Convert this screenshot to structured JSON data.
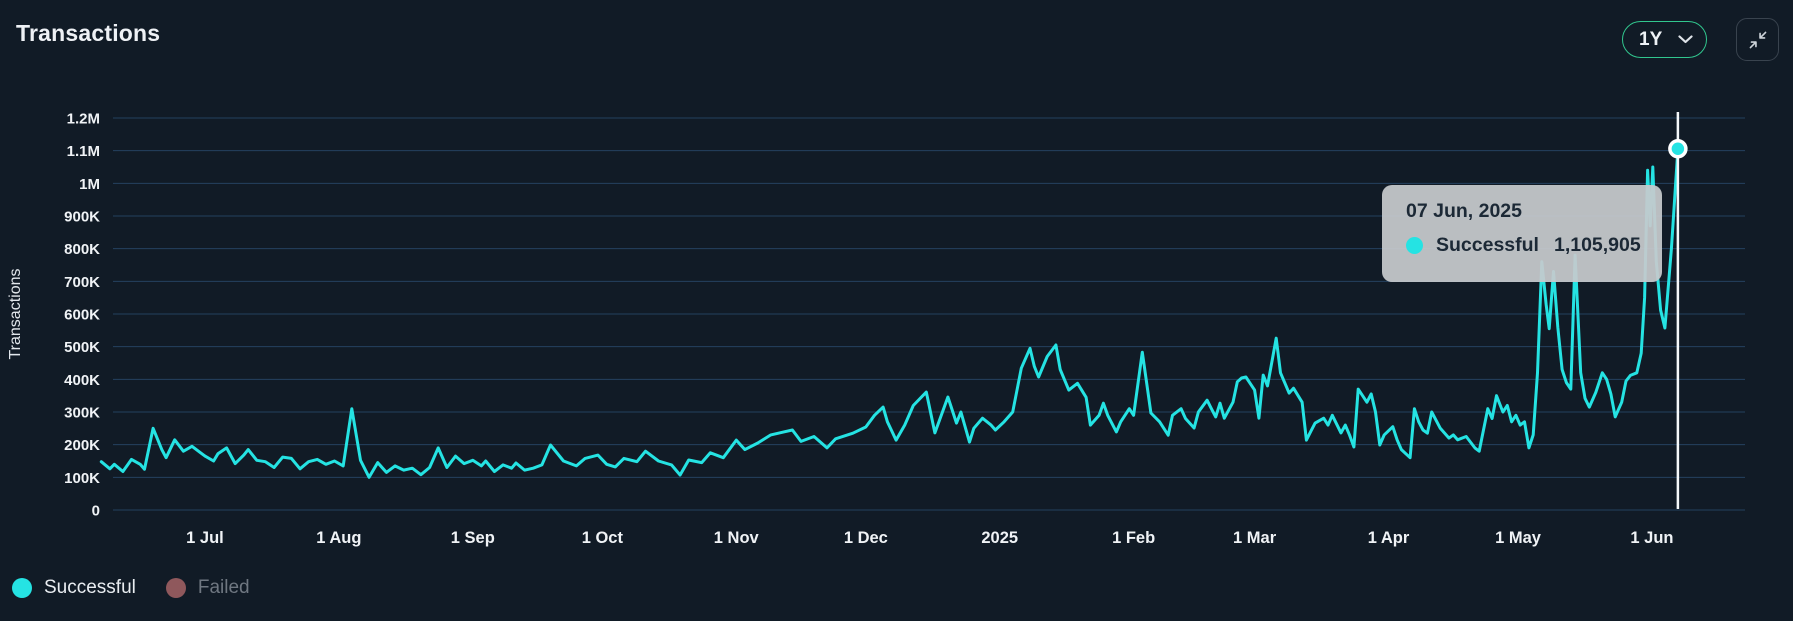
{
  "header": {
    "title": "Transactions",
    "range_selector": {
      "value": "1Y"
    }
  },
  "colors": {
    "background": "#111b26",
    "grid": "#24425f",
    "axis_text": "#f0f3f6",
    "successful": "#25e3e3",
    "failed": "#8f585c",
    "failed_text": "#6f7781",
    "legend_text": "#e9edf1",
    "pill_border": "#31c68e",
    "crosshair": "#f5f8fa",
    "tooltip_bg": "#c7cace"
  },
  "tooltip": {
    "date": "07 Jun, 2025",
    "series": "Successful",
    "value": "1,105,905"
  },
  "chart_data": {
    "type": "line",
    "title": "Transactions",
    "ylabel": "Transactions",
    "xlabel": "",
    "grid": true,
    "legend_position": "bottom-left",
    "ylim": [
      0,
      1200000
    ],
    "y_ticks": [
      {
        "v": 0,
        "label": "0"
      },
      {
        "v": 100000,
        "label": "100K"
      },
      {
        "v": 200000,
        "label": "200K"
      },
      {
        "v": 300000,
        "label": "300K"
      },
      {
        "v": 400000,
        "label": "400K"
      },
      {
        "v": 500000,
        "label": "500K"
      },
      {
        "v": 600000,
        "label": "600K"
      },
      {
        "v": 700000,
        "label": "700K"
      },
      {
        "v": 800000,
        "label": "800K"
      },
      {
        "v": 900000,
        "label": "900K"
      },
      {
        "v": 1000000,
        "label": "1M"
      },
      {
        "v": 1100000,
        "label": "1.1M"
      },
      {
        "v": 1200000,
        "label": "1.2M"
      }
    ],
    "x_ticks": [
      {
        "day": 24,
        "label": "1 Jul"
      },
      {
        "day": 55,
        "label": "1 Aug"
      },
      {
        "day": 86,
        "label": "1 Sep"
      },
      {
        "day": 116,
        "label": "1 Oct"
      },
      {
        "day": 147,
        "label": "1 Nov"
      },
      {
        "day": 177,
        "label": "1 Dec"
      },
      {
        "day": 208,
        "label": "2025"
      },
      {
        "day": 239,
        "label": "1 Feb"
      },
      {
        "day": 267,
        "label": "1 Mar"
      },
      {
        "day": 298,
        "label": "1 Apr"
      },
      {
        "day": 328,
        "label": "1 May"
      },
      {
        "day": 359,
        "label": "1 Jun"
      }
    ],
    "legend": [
      {
        "label": "Successful",
        "color": "#25e3e3",
        "active": true,
        "text_color": "#e9edf1"
      },
      {
        "label": "Failed",
        "color": "#8f585c",
        "active": false,
        "text_color": "#6f7781"
      }
    ],
    "highlight": {
      "day": 365,
      "value": 1105905,
      "date_label": "07 Jun, 2025",
      "series": "Successful"
    },
    "series": [
      {
        "name": "Successful",
        "color": "#25e3e3",
        "unit": "transactions per day",
        "points": [
          [
            0,
            148000
          ],
          [
            2,
            126000
          ],
          [
            3,
            140000
          ],
          [
            5,
            118000
          ],
          [
            7,
            155000
          ],
          [
            9,
            140000
          ],
          [
            10,
            125000
          ],
          [
            12,
            250000
          ],
          [
            14,
            185000
          ],
          [
            15,
            160000
          ],
          [
            17,
            215000
          ],
          [
            19,
            180000
          ],
          [
            21,
            195000
          ],
          [
            23,
            175000
          ],
          [
            24,
            165000
          ],
          [
            26,
            150000
          ],
          [
            27,
            172000
          ],
          [
            29,
            190000
          ],
          [
            31,
            142000
          ],
          [
            33,
            168000
          ],
          [
            34,
            185000
          ],
          [
            36,
            152000
          ],
          [
            38,
            148000
          ],
          [
            40,
            130000
          ],
          [
            42,
            162000
          ],
          [
            44,
            158000
          ],
          [
            46,
            126000
          ],
          [
            48,
            148000
          ],
          [
            50,
            155000
          ],
          [
            52,
            140000
          ],
          [
            54,
            150000
          ],
          [
            56,
            135000
          ],
          [
            58,
            310000
          ],
          [
            60,
            152000
          ],
          [
            62,
            100000
          ],
          [
            64,
            145000
          ],
          [
            66,
            115000
          ],
          [
            68,
            135000
          ],
          [
            70,
            122000
          ],
          [
            72,
            128000
          ],
          [
            74,
            108000
          ],
          [
            76,
            130000
          ],
          [
            78,
            190000
          ],
          [
            80,
            130000
          ],
          [
            82,
            165000
          ],
          [
            84,
            142000
          ],
          [
            86,
            152000
          ],
          [
            88,
            135000
          ],
          [
            89,
            150000
          ],
          [
            91,
            118000
          ],
          [
            93,
            138000
          ],
          [
            95,
            128000
          ],
          [
            96,
            144000
          ],
          [
            98,
            122000
          ],
          [
            100,
            128000
          ],
          [
            102,
            138000
          ],
          [
            104,
            199000
          ],
          [
            107,
            150000
          ],
          [
            110,
            135000
          ],
          [
            112,
            158000
          ],
          [
            115,
            168000
          ],
          [
            117,
            140000
          ],
          [
            119,
            132000
          ],
          [
            121,
            158000
          ],
          [
            124,
            148000
          ],
          [
            126,
            180000
          ],
          [
            129,
            150000
          ],
          [
            132,
            138000
          ],
          [
            134,
            107000
          ],
          [
            136,
            153000
          ],
          [
            139,
            145000
          ],
          [
            141,
            175000
          ],
          [
            144,
            160000
          ],
          [
            147,
            214000
          ],
          [
            149,
            185000
          ],
          [
            152,
            205000
          ],
          [
            155,
            230000
          ],
          [
            158,
            239000
          ],
          [
            160,
            245000
          ],
          [
            162,
            210000
          ],
          [
            165,
            225000
          ],
          [
            168,
            190000
          ],
          [
            170,
            218000
          ],
          [
            174,
            235000
          ],
          [
            177,
            254000
          ],
          [
            179,
            290000
          ],
          [
            181,
            315000
          ],
          [
            182,
            270000
          ],
          [
            184,
            214000
          ],
          [
            186,
            260000
          ],
          [
            188,
            320000
          ],
          [
            191,
            361000
          ],
          [
            193,
            236000
          ],
          [
            196,
            346000
          ],
          [
            198,
            266000
          ],
          [
            199,
            300000
          ],
          [
            201,
            208000
          ],
          [
            202,
            250000
          ],
          [
            204,
            281000
          ],
          [
            206,
            260000
          ],
          [
            207,
            245000
          ],
          [
            209,
            270000
          ],
          [
            211,
            300000
          ],
          [
            213,
            434000
          ],
          [
            215,
            495000
          ],
          [
            216,
            440000
          ],
          [
            217,
            407000
          ],
          [
            219,
            470000
          ],
          [
            221,
            505000
          ],
          [
            222,
            430000
          ],
          [
            224,
            367000
          ],
          [
            226,
            388000
          ],
          [
            228,
            345000
          ],
          [
            229,
            260000
          ],
          [
            231,
            290000
          ],
          [
            232,
            327000
          ],
          [
            233,
            290000
          ],
          [
            235,
            239000
          ],
          [
            236,
            270000
          ],
          [
            238,
            310000
          ],
          [
            239,
            290000
          ],
          [
            241,
            483000
          ],
          [
            243,
            297000
          ],
          [
            245,
            270000
          ],
          [
            247,
            229000
          ],
          [
            248,
            290000
          ],
          [
            250,
            310000
          ],
          [
            251,
            280000
          ],
          [
            253,
            251000
          ],
          [
            254,
            300000
          ],
          [
            256,
            336000
          ],
          [
            257,
            310000
          ],
          [
            258,
            285000
          ],
          [
            259,
            327000
          ],
          [
            260,
            281000
          ],
          [
            262,
            330000
          ],
          [
            263,
            392000
          ],
          [
            264,
            404000
          ],
          [
            265,
            407000
          ],
          [
            267,
            367000
          ],
          [
            268,
            281000
          ],
          [
            269,
            413000
          ],
          [
            270,
            380000
          ],
          [
            272,
            526000
          ],
          [
            273,
            420000
          ],
          [
            275,
            358000
          ],
          [
            276,
            373000
          ],
          [
            278,
            330000
          ],
          [
            279,
            214000
          ],
          [
            280,
            240000
          ],
          [
            281,
            266000
          ],
          [
            283,
            281000
          ],
          [
            284,
            260000
          ],
          [
            285,
            290000
          ],
          [
            287,
            236000
          ],
          [
            288,
            260000
          ],
          [
            289,
            229000
          ],
          [
            290,
            193000
          ],
          [
            291,
            370000
          ],
          [
            293,
            330000
          ],
          [
            294,
            355000
          ],
          [
            295,
            300000
          ],
          [
            296,
            199000
          ],
          [
            297,
            230000
          ],
          [
            299,
            255000
          ],
          [
            300,
            215000
          ],
          [
            301,
            185000
          ],
          [
            303,
            160000
          ],
          [
            304,
            310000
          ],
          [
            305,
            270000
          ],
          [
            306,
            245000
          ],
          [
            307,
            235000
          ],
          [
            308,
            300000
          ],
          [
            310,
            250000
          ],
          [
            312,
            220000
          ],
          [
            313,
            230000
          ],
          [
            314,
            215000
          ],
          [
            316,
            225000
          ],
          [
            318,
            190000
          ],
          [
            319,
            180000
          ],
          [
            321,
            310000
          ],
          [
            322,
            280000
          ],
          [
            323,
            350000
          ],
          [
            324.5,
            300000
          ],
          [
            325.5,
            320000
          ],
          [
            326.5,
            270000
          ],
          [
            327.5,
            290000
          ],
          [
            328.5,
            260000
          ],
          [
            329.5,
            270000
          ],
          [
            330.5,
            190000
          ],
          [
            331.5,
            230000
          ],
          [
            332.5,
            420000
          ],
          [
            333.5,
            760000
          ],
          [
            334.5,
            630000
          ],
          [
            335.2,
            555000
          ],
          [
            336.2,
            730000
          ],
          [
            337.2,
            560000
          ],
          [
            338.2,
            430000
          ],
          [
            339.2,
            390000
          ],
          [
            340.2,
            370000
          ],
          [
            341.2,
            780000
          ],
          [
            342.5,
            420000
          ],
          [
            343.5,
            342000
          ],
          [
            344.5,
            315000
          ],
          [
            346,
            360000
          ],
          [
            347.5,
            420000
          ],
          [
            348.5,
            400000
          ],
          [
            349.5,
            355000
          ],
          [
            350.5,
            285000
          ],
          [
            352,
            330000
          ],
          [
            353,
            395000
          ],
          [
            354,
            412000
          ],
          [
            355.5,
            420000
          ],
          [
            356.5,
            480000
          ],
          [
            357.3,
            650000
          ],
          [
            358,
            1040000
          ],
          [
            358.6,
            870000
          ],
          [
            359.2,
            1050000
          ],
          [
            360,
            760000
          ],
          [
            361,
            612000
          ],
          [
            362,
            557000
          ],
          [
            363.5,
            800000
          ],
          [
            365,
            1105905
          ]
        ]
      }
    ]
  }
}
